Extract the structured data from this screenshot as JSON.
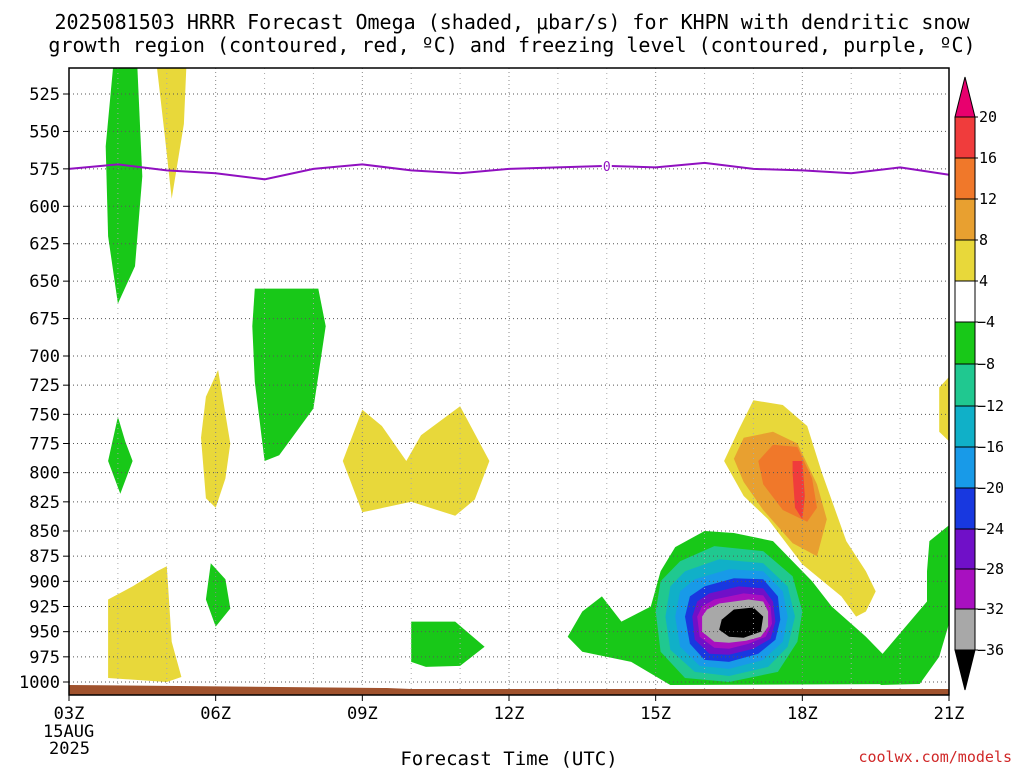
{
  "chart_data": {
    "type": "heatmap",
    "title_line1": "2025081503 HRRR Forecast Omega (shaded, μbar/s) for KHPN with dendritic snow",
    "title_line2": "growth region (contoured, red, ºC) and freezing level (contoured, purple, ºC)",
    "xlabel": "Forecast Time (UTC)",
    "credit": "coolwx.com/models",
    "x_ticks": [
      {
        "hour": 3,
        "label": "03Z",
        "label2": "15AUG",
        "label3": "2025"
      },
      {
        "hour": 6,
        "label": "06Z"
      },
      {
        "hour": 9,
        "label": "09Z"
      },
      {
        "hour": 12,
        "label": "12Z"
      },
      {
        "hour": 15,
        "label": "15Z"
      },
      {
        "hour": 18,
        "label": "18Z"
      },
      {
        "hour": 21,
        "label": "21Z"
      }
    ],
    "y_ticks": [
      "525",
      "550",
      "575",
      "600",
      "625",
      "650",
      "675",
      "700",
      "725",
      "750",
      "775",
      "800",
      "825",
      "850",
      "875",
      "900",
      "925",
      "950",
      "975",
      "1000"
    ],
    "colorbar": {
      "labels": [
        "20",
        "16",
        "12",
        "8",
        "4",
        "-4",
        "-8",
        "-12",
        "-16",
        "-20",
        "-24",
        "-28",
        "-32",
        "-36"
      ],
      "colors": [
        "#e8006e",
        "#f03c3c",
        "#f0782a",
        "#e8a030",
        "#e8d83a",
        "#ffffff",
        "#18c818",
        "#20c890",
        "#10b0c8",
        "#189ae8",
        "#1838e0",
        "#7010c8",
        "#a810c0",
        "#a8a8a8",
        "#000000"
      ]
    },
    "freezing_level": {
      "color": "#9010c0",
      "points": [
        [
          3,
          575
        ],
        [
          4,
          572
        ],
        [
          5,
          576
        ],
        [
          6,
          578
        ],
        [
          7,
          582
        ],
        [
          8,
          575
        ],
        [
          9,
          572
        ],
        [
          10,
          576
        ],
        [
          11,
          578
        ],
        [
          12,
          575
        ],
        [
          13,
          574
        ],
        [
          14,
          573
        ],
        [
          15,
          574
        ],
        [
          16,
          571
        ],
        [
          17,
          575
        ],
        [
          18,
          576
        ],
        [
          19,
          578
        ],
        [
          20,
          574
        ],
        [
          21,
          579
        ]
      ],
      "label": "0"
    },
    "surface_color": "#a0522d",
    "regions": [
      {
        "name": "upward-green-early",
        "color": "#18c818",
        "points": [
          [
            3.9,
            507
          ],
          [
            4.4,
            507
          ],
          [
            4.5,
            580
          ],
          [
            4.35,
            640
          ],
          [
            4.0,
            665
          ],
          [
            3.8,
            620
          ],
          [
            3.75,
            560
          ]
        ]
      },
      {
        "name": "downward-yellow-top",
        "color": "#e8d83a",
        "points": [
          [
            4.8,
            507
          ],
          [
            5.4,
            507
          ],
          [
            5.35,
            545
          ],
          [
            5.1,
            595
          ],
          [
            4.95,
            550
          ]
        ]
      },
      {
        "name": "upward-green-small-0430",
        "color": "#18c818",
        "points": [
          [
            4.0,
            752
          ],
          [
            4.15,
            773
          ],
          [
            4.3,
            790
          ],
          [
            4.05,
            818
          ],
          [
            3.8,
            790
          ]
        ]
      },
      {
        "name": "downward-yellow-0600",
        "color": "#e8d83a",
        "points": [
          [
            5.8,
            735
          ],
          [
            6.05,
            712
          ],
          [
            6.3,
            775
          ],
          [
            6.2,
            805
          ],
          [
            6.0,
            830
          ],
          [
            5.8,
            822
          ],
          [
            5.7,
            770
          ]
        ]
      },
      {
        "name": "upward-green-0700",
        "color": "#18c818",
        "points": [
          [
            6.8,
            655
          ],
          [
            8.1,
            655
          ],
          [
            8.25,
            680
          ],
          [
            8.0,
            745
          ],
          [
            7.3,
            785
          ],
          [
            7.0,
            790
          ],
          [
            6.8,
            722
          ],
          [
            6.75,
            680
          ]
        ]
      },
      {
        "name": "downward-yellow-0900",
        "color": "#e8d83a",
        "points": [
          [
            9.0,
            746
          ],
          [
            9.4,
            760
          ],
          [
            9.9,
            790
          ],
          [
            10.2,
            768
          ],
          [
            11.0,
            743
          ],
          [
            11.6,
            790
          ],
          [
            11.3,
            823
          ],
          [
            10.9,
            837
          ],
          [
            10.0,
            825
          ],
          [
            9.0,
            834
          ],
          [
            8.6,
            790
          ]
        ]
      },
      {
        "name": "upward-green-small-0600-low",
        "color": "#18c818",
        "points": [
          [
            5.9,
            882
          ],
          [
            6.2,
            898
          ],
          [
            6.3,
            927
          ],
          [
            6.0,
            945
          ],
          [
            5.8,
            918
          ]
        ]
      },
      {
        "name": "downward-yellow-low-early",
        "color": "#e8d83a",
        "points": [
          [
            4.8,
            890
          ],
          [
            5.0,
            885
          ],
          [
            5.1,
            960
          ],
          [
            5.3,
            995
          ],
          [
            5.0,
            1000
          ],
          [
            3.8,
            996
          ],
          [
            3.8,
            918
          ],
          [
            4.3,
            905
          ]
        ]
      },
      {
        "name": "upward-green-1000",
        "color": "#18c818",
        "points": [
          [
            10.0,
            940
          ],
          [
            10.9,
            940
          ],
          [
            11.5,
            965
          ],
          [
            11.0,
            984
          ],
          [
            10.3,
            985
          ],
          [
            10.0,
            980
          ]
        ]
      },
      {
        "name": "downward-yellow-right-edge",
        "color": "#e8d83a",
        "points": [
          [
            20.8,
            727
          ],
          [
            21.0,
            718
          ],
          [
            21.0,
            773
          ],
          [
            20.8,
            765
          ]
        ]
      },
      {
        "name": "upward-green-right-edge",
        "color": "#18c818",
        "points": [
          [
            20.6,
            860
          ],
          [
            21.0,
            845
          ],
          [
            21.0,
            942
          ],
          [
            20.8,
            975
          ],
          [
            20.4,
            1002
          ],
          [
            19.6,
            1003
          ],
          [
            19.5,
            980
          ],
          [
            20.55,
            920
          ],
          [
            20.55,
            890
          ]
        ]
      },
      {
        "name": "downward-yellow-1800",
        "color": "#e8d83a",
        "points": [
          [
            16.7,
            763
          ],
          [
            17.0,
            738
          ],
          [
            17.6,
            742
          ],
          [
            18.1,
            760
          ],
          [
            18.4,
            800
          ],
          [
            18.9,
            860
          ],
          [
            19.3,
            890
          ],
          [
            19.5,
            910
          ],
          [
            19.3,
            930
          ],
          [
            19.1,
            935
          ],
          [
            18.8,
            915
          ],
          [
            18.0,
            883
          ],
          [
            17.3,
            840
          ],
          [
            16.8,
            820
          ],
          [
            16.4,
            790
          ]
        ]
      },
      {
        "name": "downward-gold-1800",
        "color": "#e8a030",
        "points": [
          [
            16.8,
            770
          ],
          [
            17.4,
            765
          ],
          [
            17.9,
            775
          ],
          [
            18.3,
            810
          ],
          [
            18.5,
            840
          ],
          [
            18.3,
            875
          ],
          [
            17.8,
            862
          ],
          [
            17.2,
            832
          ],
          [
            16.8,
            808
          ],
          [
            16.6,
            788
          ]
        ]
      },
      {
        "name": "downward-orange-1800",
        "color": "#f0782a",
        "points": [
          [
            17.4,
            776
          ],
          [
            17.9,
            778
          ],
          [
            18.2,
            805
          ],
          [
            18.3,
            830
          ],
          [
            18.1,
            842
          ],
          [
            17.6,
            832
          ],
          [
            17.2,
            810
          ],
          [
            17.1,
            790
          ]
        ]
      },
      {
        "name": "downward-red-1800",
        "color": "#f03c3c",
        "points": [
          [
            17.8,
            790
          ],
          [
            18.0,
            790
          ],
          [
            18.05,
            820
          ],
          [
            18.0,
            840
          ],
          [
            17.85,
            830
          ],
          [
            17.8,
            800
          ]
        ]
      },
      {
        "name": "upward-green-1500",
        "color": "#18c818",
        "points": [
          [
            15.4,
            866
          ],
          [
            16.0,
            850
          ],
          [
            16.6,
            852
          ],
          [
            17.4,
            860
          ],
          [
            17.8,
            880
          ],
          [
            18.2,
            900
          ],
          [
            18.6,
            925
          ],
          [
            19.3,
            955
          ],
          [
            19.9,
            985
          ],
          [
            20.2,
            1002
          ],
          [
            15.3,
            1003
          ],
          [
            14.5,
            980
          ],
          [
            13.5,
            970
          ],
          [
            13.2,
            955
          ],
          [
            13.5,
            930
          ],
          [
            13.9,
            915
          ],
          [
            14.3,
            940
          ],
          [
            14.9,
            925
          ],
          [
            15.1,
            890
          ]
        ]
      },
      {
        "name": "upward-teal-1500",
        "color": "#20c890",
        "points": [
          [
            15.5,
            880
          ],
          [
            16.2,
            865
          ],
          [
            17.2,
            870
          ],
          [
            17.8,
            895
          ],
          [
            18.0,
            930
          ],
          [
            17.9,
            960
          ],
          [
            17.5,
            990
          ],
          [
            16.5,
            1000
          ],
          [
            15.6,
            996
          ],
          [
            15.1,
            970
          ],
          [
            15.0,
            930
          ],
          [
            15.1,
            900
          ]
        ]
      },
      {
        "name": "upward-cyan-1500",
        "color": "#10b0c8",
        "points": [
          [
            15.6,
            890
          ],
          [
            16.3,
            878
          ],
          [
            17.2,
            882
          ],
          [
            17.7,
            905
          ],
          [
            17.85,
            935
          ],
          [
            17.7,
            965
          ],
          [
            17.3,
            985
          ],
          [
            16.5,
            994
          ],
          [
            15.8,
            990
          ],
          [
            15.3,
            968
          ],
          [
            15.2,
            935
          ],
          [
            15.3,
            905
          ]
        ]
      },
      {
        "name": "upward-lightblue-1500",
        "color": "#189ae8",
        "points": [
          [
            15.8,
            898
          ],
          [
            16.5,
            888
          ],
          [
            17.2,
            890
          ],
          [
            17.6,
            910
          ],
          [
            17.7,
            935
          ],
          [
            17.6,
            960
          ],
          [
            17.2,
            978
          ],
          [
            16.5,
            987
          ],
          [
            15.9,
            984
          ],
          [
            15.5,
            965
          ],
          [
            15.4,
            935
          ],
          [
            15.5,
            910
          ]
        ]
      },
      {
        "name": "upward-blue-1500",
        "color": "#1838e0",
        "points": [
          [
            16.0,
            905
          ],
          [
            16.6,
            897
          ],
          [
            17.2,
            898
          ],
          [
            17.5,
            915
          ],
          [
            17.55,
            938
          ],
          [
            17.45,
            958
          ],
          [
            17.1,
            972
          ],
          [
            16.5,
            980
          ],
          [
            16.0,
            978
          ],
          [
            15.7,
            962
          ],
          [
            15.6,
            935
          ],
          [
            15.7,
            915
          ]
        ]
      },
      {
        "name": "upward-purple-1500",
        "color": "#7010c8",
        "points": [
          [
            16.1,
            912
          ],
          [
            16.7,
            905
          ],
          [
            17.2,
            907
          ],
          [
            17.4,
            920
          ],
          [
            17.45,
            940
          ],
          [
            17.35,
            957
          ],
          [
            17.0,
            967
          ],
          [
            16.5,
            973
          ],
          [
            16.1,
            972
          ],
          [
            15.8,
            958
          ],
          [
            15.75,
            935
          ],
          [
            15.85,
            920
          ]
        ]
      },
      {
        "name": "upward-magenta-1500",
        "color": "#a810c0",
        "points": [
          [
            16.2,
            918
          ],
          [
            16.8,
            912
          ],
          [
            17.2,
            914
          ],
          [
            17.35,
            925
          ],
          [
            17.38,
            942
          ],
          [
            17.25,
            955
          ],
          [
            16.9,
            962
          ],
          [
            16.5,
            967
          ],
          [
            16.2,
            966
          ],
          [
            15.9,
            955
          ],
          [
            15.85,
            935
          ],
          [
            15.95,
            925
          ]
        ]
      },
      {
        "name": "upward-gray-1500",
        "color": "#a8a8a8",
        "points": [
          [
            16.3,
            922
          ],
          [
            16.9,
            918
          ],
          [
            17.2,
            920
          ],
          [
            17.3,
            930
          ],
          [
            17.3,
            945
          ],
          [
            17.15,
            955
          ],
          [
            16.85,
            959
          ],
          [
            16.5,
            961
          ],
          [
            16.2,
            960
          ],
          [
            15.95,
            950
          ],
          [
            15.95,
            935
          ],
          [
            16.05,
            928
          ]
        ]
      },
      {
        "name": "upward-black-1500",
        "color": "#000000",
        "points": [
          [
            16.6,
            928
          ],
          [
            17.0,
            926
          ],
          [
            17.2,
            935
          ],
          [
            17.15,
            950
          ],
          [
            16.8,
            956
          ],
          [
            16.5,
            955
          ],
          [
            16.3,
            948
          ],
          [
            16.35,
            938
          ]
        ]
      }
    ]
  }
}
